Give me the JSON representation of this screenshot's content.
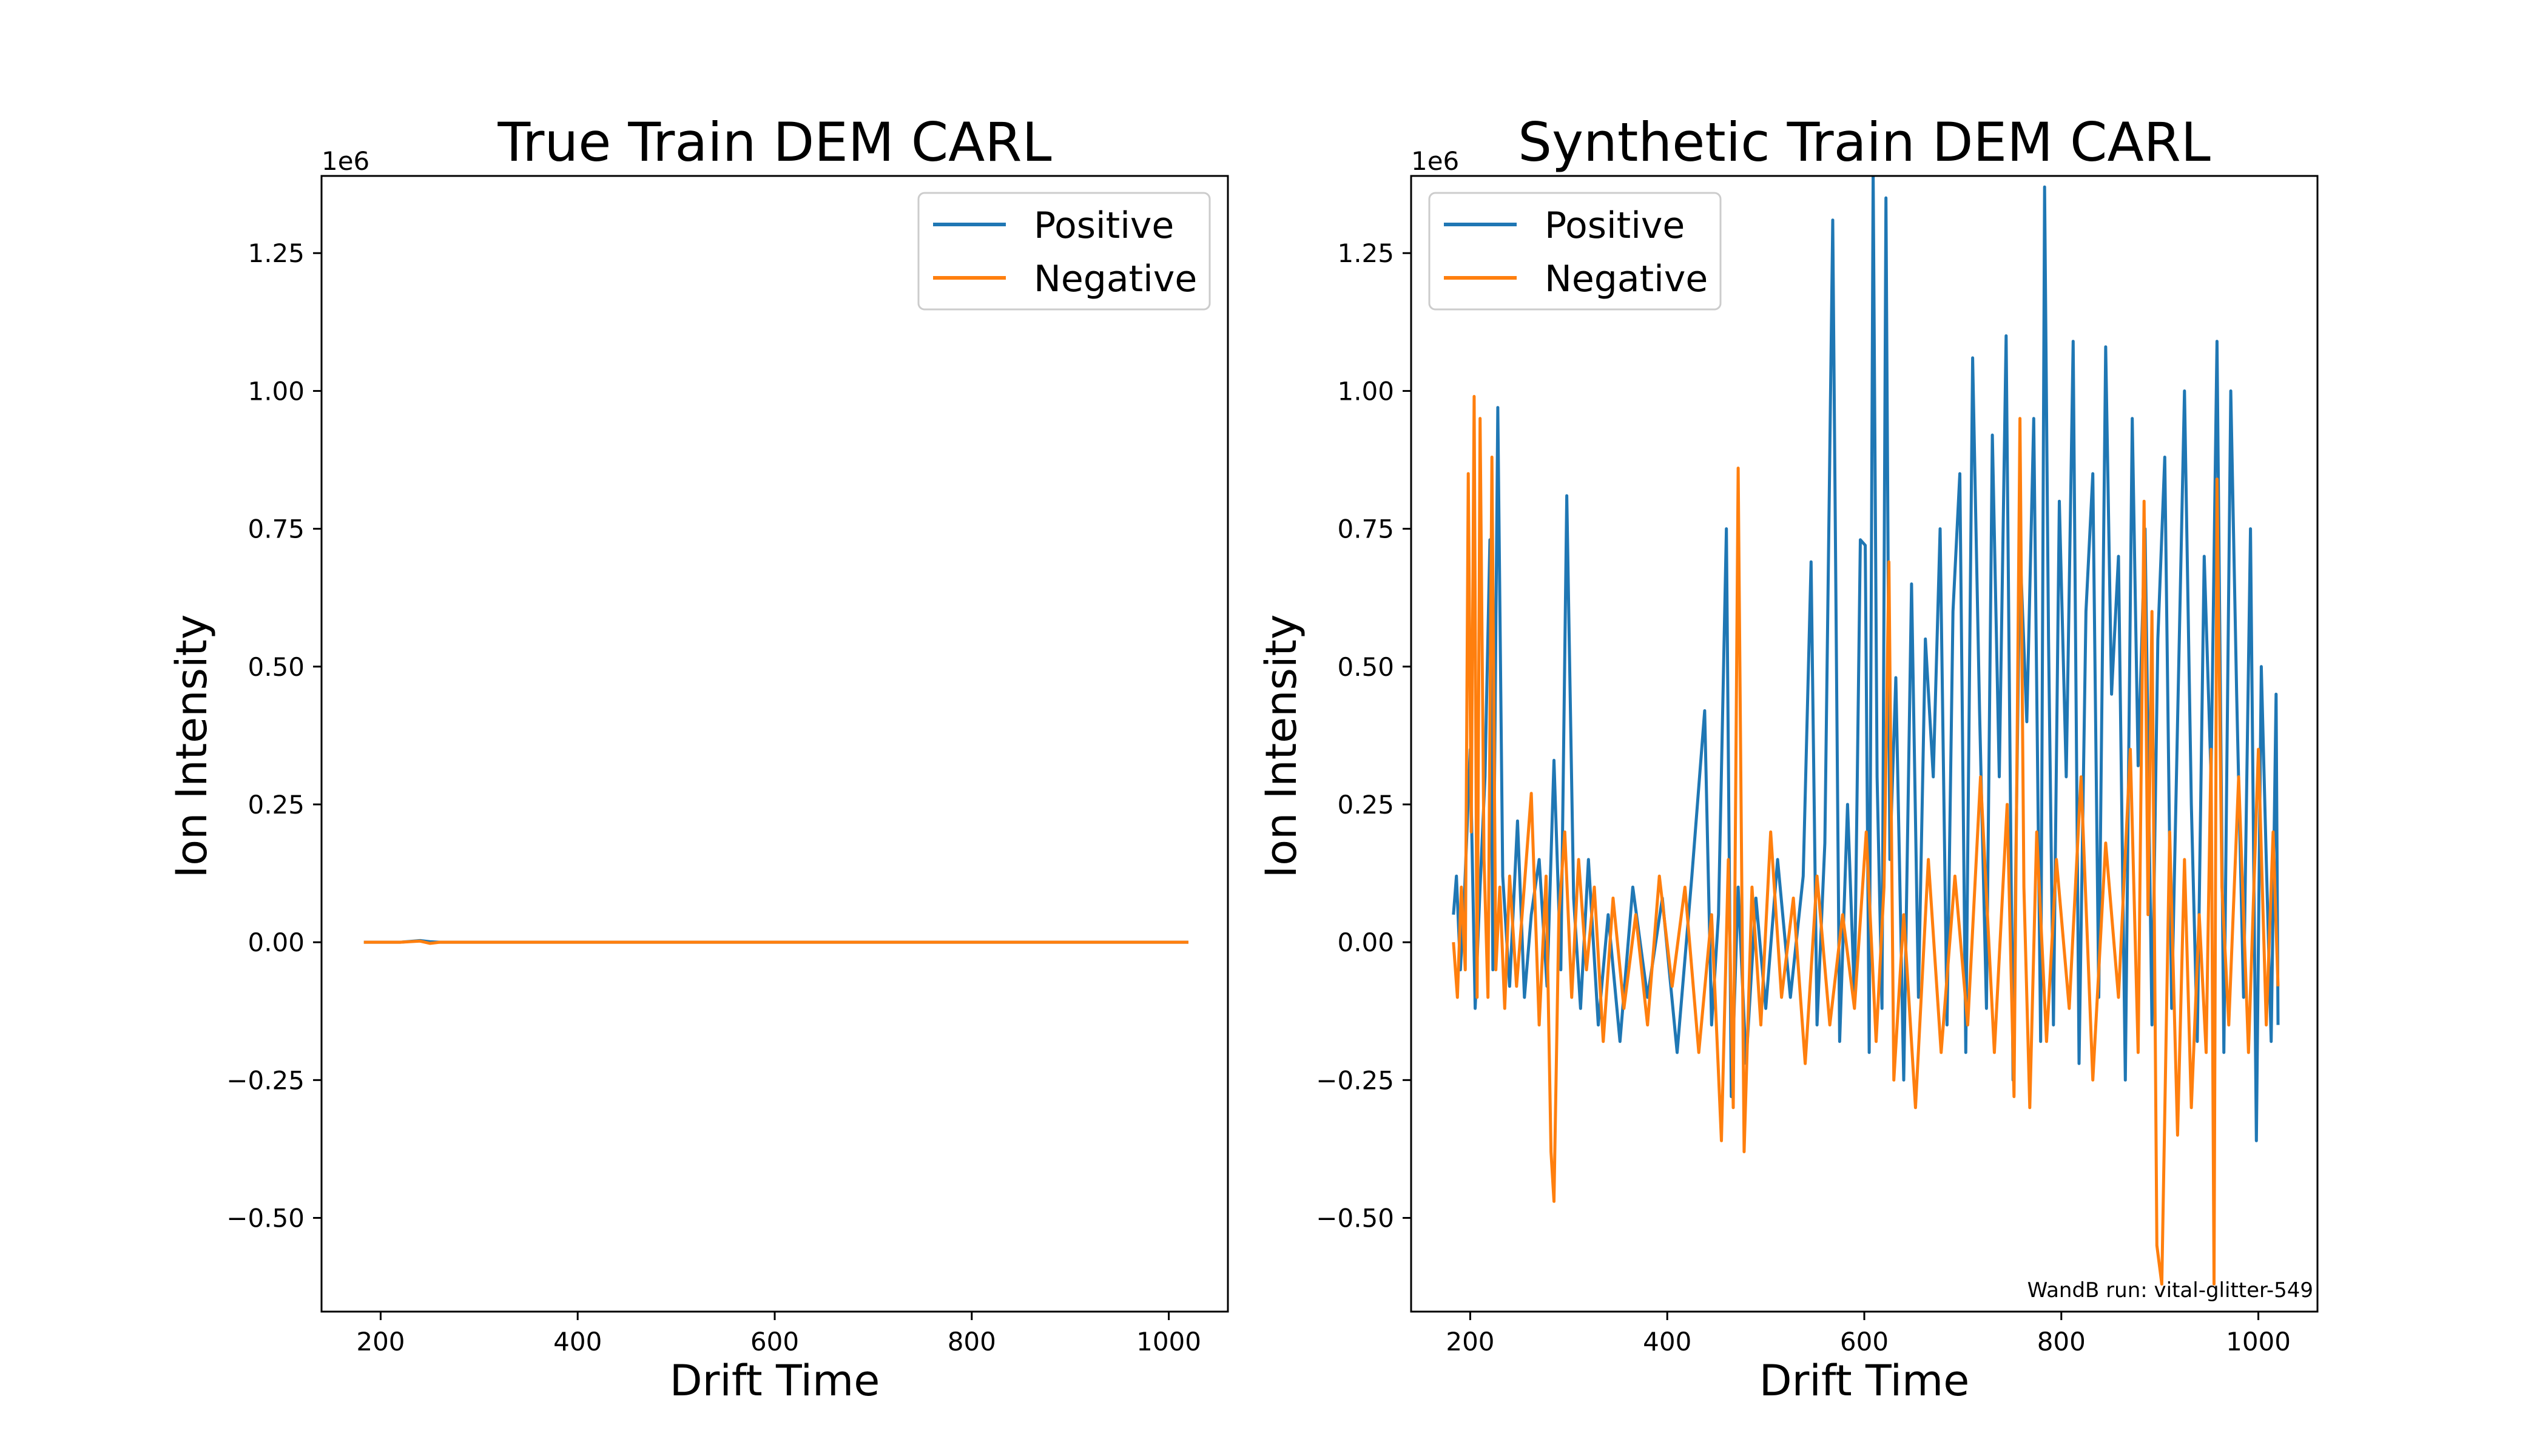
{
  "footnote": "WandB run: vital-glitter-549",
  "chart_data": [
    {
      "type": "line",
      "title": "True Train DEM CARL",
      "xlabel": "Drift Time",
      "ylabel": "Ion Intensity",
      "y_offset_label": "1e6",
      "xlim": [
        140,
        1060
      ],
      "ylim": [
        -0.67,
        1.39
      ],
      "y_scale_factor": 1000000,
      "xticks": [
        200,
        400,
        600,
        800,
        1000
      ],
      "yticks": [
        -0.5,
        -0.25,
        0.0,
        0.25,
        0.5,
        0.75,
        1.0,
        1.25
      ],
      "ytick_labels": [
        "−0.50",
        "−0.25",
        "0.00",
        "0.25",
        "0.50",
        "0.75",
        "1.00",
        "1.25"
      ],
      "legend_position": "upper right",
      "grid": false,
      "series": [
        {
          "name": "Positive",
          "color": "#1f77b4",
          "x": [
            183,
            200,
            220,
            240,
            250,
            260,
            300,
            400,
            500,
            600,
            700,
            800,
            900,
            1000,
            1020
          ],
          "y": [
            0.0,
            0.0,
            0.0,
            0.003,
            0.001,
            0.0,
            0.0,
            0.0,
            0.0,
            0.0,
            0.0,
            0.0,
            0.0,
            0.0,
            0.0
          ]
        },
        {
          "name": "Negative",
          "color": "#ff7f0e",
          "x": [
            183,
            200,
            220,
            240,
            250,
            260,
            300,
            400,
            500,
            600,
            700,
            800,
            900,
            1000,
            1020
          ],
          "y": [
            0.0,
            0.0,
            0.0,
            0.002,
            -0.002,
            0.0,
            0.0,
            0.0,
            0.0,
            0.0,
            0.0,
            0.0,
            0.0,
            0.0,
            0.0
          ]
        }
      ]
    },
    {
      "type": "line",
      "title": "Synthetic Train DEM CARL",
      "xlabel": "Drift Time",
      "ylabel": "Ion Intensity",
      "y_offset_label": "1e6",
      "xlim": [
        140,
        1060
      ],
      "ylim": [
        -0.67,
        1.39
      ],
      "y_scale_factor": 1000000,
      "xticks": [
        200,
        400,
        600,
        800,
        1000
      ],
      "yticks": [
        -0.5,
        -0.25,
        0.0,
        0.25,
        0.5,
        0.75,
        1.0,
        1.25
      ],
      "ytick_labels": [
        "−0.50",
        "−0.25",
        "0.00",
        "0.25",
        "0.50",
        "0.75",
        "1.00",
        "1.25"
      ],
      "legend_position": "upper left",
      "grid": false,
      "series": [
        {
          "name": "Positive",
          "color": "#1f77b4",
          "x": [
            183,
            186,
            190,
            194,
            200,
            205,
            210,
            215,
            220,
            223,
            228,
            233,
            240,
            248,
            255,
            262,
            270,
            278,
            285,
            292,
            298,
            305,
            312,
            320,
            330,
            340,
            352,
            365,
            380,
            395,
            410,
            425,
            438,
            445,
            452,
            460,
            465,
            472,
            480,
            490,
            500,
            512,
            525,
            538,
            546,
            552,
            560,
            568,
            575,
            583,
            590,
            596,
            601,
            605,
            609,
            613,
            618,
            622,
            626,
            632,
            640,
            648,
            655,
            662,
            670,
            677,
            684,
            690,
            697,
            703,
            710,
            717,
            724,
            730,
            737,
            744,
            751,
            758,
            765,
            772,
            779,
            783,
            787,
            792,
            798,
            805,
            812,
            818,
            825,
            832,
            838,
            845,
            851,
            858,
            865,
            872,
            878,
            885,
            892,
            898,
            905,
            912,
            918,
            925,
            932,
            938,
            945,
            952,
            958,
            965,
            972,
            978,
            985,
            992,
            998,
            1003,
            1008,
            1013,
            1018,
            1020
          ],
          "y": [
            0.05,
            0.12,
            -0.05,
            0.08,
            0.35,
            -0.12,
            0.1,
            0.3,
            0.73,
            -0.05,
            0.97,
            0.12,
            -0.08,
            0.22,
            -0.1,
            0.05,
            0.15,
            -0.08,
            0.33,
            -0.05,
            0.81,
            0.08,
            -0.12,
            0.15,
            -0.15,
            0.05,
            -0.18,
            0.1,
            -0.1,
            0.08,
            -0.2,
            0.12,
            0.42,
            -0.15,
            0.05,
            0.75,
            -0.28,
            0.1,
            -0.22,
            0.08,
            -0.12,
            0.15,
            -0.1,
            0.12,
            0.69,
            -0.15,
            0.18,
            1.31,
            -0.18,
            0.25,
            -0.1,
            0.73,
            0.72,
            -0.2,
            1.4,
            0.3,
            -0.12,
            1.35,
            0.15,
            0.48,
            -0.25,
            0.65,
            -0.1,
            0.55,
            0.3,
            0.75,
            -0.15,
            0.6,
            0.85,
            -0.2,
            1.06,
            0.42,
            -0.12,
            0.92,
            0.3,
            1.1,
            -0.25,
            0.72,
            0.4,
            0.95,
            -0.18,
            1.37,
            0.55,
            -0.15,
            0.8,
            0.3,
            1.09,
            -0.22,
            0.6,
            0.85,
            -0.1,
            1.08,
            0.45,
            0.7,
            -0.25,
            0.95,
            0.32,
            0.75,
            -0.15,
            0.55,
            0.88,
            -0.12,
            0.4,
            1.0,
            0.25,
            -0.18,
            0.7,
            0.3,
            1.09,
            -0.2,
            1.0,
            0.45,
            -0.1,
            0.75,
            -0.36,
            0.5,
            0.15,
            -0.18,
            0.45,
            -0.15
          ]
        },
        {
          "name": "Negative",
          "color": "#ff7f0e",
          "x": [
            183,
            187,
            191,
            195,
            198,
            201,
            204,
            207,
            210,
            214,
            218,
            222,
            226,
            230,
            235,
            240,
            247,
            254,
            262,
            270,
            277,
            282,
            285,
            290,
            296,
            303,
            310,
            318,
            326,
            335,
            345,
            356,
            368,
            380,
            392,
            405,
            418,
            432,
            445,
            455,
            462,
            467,
            472,
            478,
            486,
            495,
            505,
            516,
            528,
            540,
            552,
            565,
            578,
            590,
            602,
            612,
            620,
            625,
            630,
            640,
            652,
            665,
            678,
            692,
            705,
            718,
            732,
            745,
            752,
            758,
            762,
            768,
            775,
            785,
            795,
            808,
            820,
            832,
            845,
            858,
            870,
            878,
            884,
            888,
            892,
            897,
            902,
            910,
            918,
            925,
            932,
            940,
            947,
            952,
            955,
            958,
            963,
            970,
            980,
            990,
            1000,
            1008,
            1015,
            1020
          ],
          "y": [
            0.0,
            -0.1,
            0.1,
            -0.05,
            0.85,
            0.2,
            0.99,
            -0.1,
            0.95,
            0.15,
            -0.1,
            0.88,
            -0.05,
            0.1,
            -0.12,
            0.12,
            -0.08,
            0.08,
            0.27,
            -0.15,
            0.12,
            -0.38,
            -0.47,
            0.05,
            0.2,
            -0.1,
            0.15,
            -0.05,
            0.1,
            -0.18,
            0.08,
            -0.12,
            0.05,
            -0.15,
            0.12,
            -0.08,
            0.1,
            -0.2,
            0.05,
            -0.36,
            0.15,
            -0.3,
            0.86,
            -0.38,
            0.1,
            -0.15,
            0.2,
            -0.1,
            0.08,
            -0.22,
            0.12,
            -0.15,
            0.05,
            -0.12,
            0.2,
            -0.18,
            0.1,
            0.69,
            -0.25,
            0.05,
            -0.3,
            0.15,
            -0.2,
            0.12,
            -0.15,
            0.3,
            -0.2,
            0.25,
            -0.28,
            0.95,
            0.1,
            -0.3,
            0.2,
            -0.18,
            0.15,
            -0.12,
            0.3,
            -0.25,
            0.18,
            -0.1,
            0.35,
            -0.2,
            0.8,
            0.05,
            0.6,
            -0.55,
            -0.62,
            0.2,
            -0.35,
            0.15,
            -0.3,
            0.05,
            -0.2,
            0.35,
            -0.62,
            0.84,
            0.1,
            -0.15,
            0.3,
            -0.2,
            0.35,
            -0.15,
            0.2,
            -0.08
          ]
        }
      ]
    }
  ]
}
